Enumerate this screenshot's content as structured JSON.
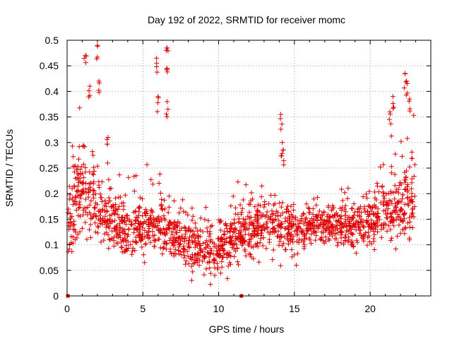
{
  "chart_data": {
    "type": "scatter",
    "title": "Day 192 of 2022, SRMTID for receiver momc",
    "xlabel": "GPS time / hours",
    "ylabel": "SRMTID / TECUs",
    "xlim": [
      0,
      24
    ],
    "ylim": [
      0,
      0.5
    ],
    "xticks": [
      "0",
      "5",
      "10",
      "15",
      "20"
    ],
    "yticks": [
      "0",
      "0.05",
      "0.1",
      "0.15",
      "0.2",
      "0.25",
      "0.3",
      "0.35",
      "0.4",
      "0.45",
      "0.5"
    ],
    "grid": true,
    "marker": "plus",
    "series_color": "#dd0000",
    "zero_markers_x": [
      0.05,
      11.5
    ],
    "profile": {
      "x": [
        0,
        0.5,
        1.0,
        1.5,
        2.0,
        2.5,
        3.0,
        3.5,
        4.0,
        4.5,
        5.0,
        5.5,
        6.0,
        6.5,
        7.0,
        7.5,
        8.0,
        8.5,
        9.0,
        9.5,
        10.0,
        10.5,
        11.0,
        11.5,
        12.0,
        12.5,
        13.0,
        13.5,
        14.0,
        14.5,
        15.0,
        15.5,
        16.0,
        16.5,
        17.0,
        17.5,
        18.0,
        18.5,
        19.0,
        19.5,
        20.0,
        20.5,
        21.0,
        21.5,
        22.0,
        22.5,
        23.0
      ],
      "median": [
        0.14,
        0.18,
        0.22,
        0.2,
        0.18,
        0.16,
        0.15,
        0.14,
        0.13,
        0.13,
        0.13,
        0.14,
        0.15,
        0.14,
        0.12,
        0.11,
        0.1,
        0.1,
        0.09,
        0.09,
        0.09,
        0.1,
        0.11,
        0.12,
        0.13,
        0.13,
        0.14,
        0.14,
        0.14,
        0.14,
        0.13,
        0.13,
        0.13,
        0.14,
        0.14,
        0.14,
        0.14,
        0.14,
        0.13,
        0.14,
        0.15,
        0.16,
        0.16,
        0.17,
        0.17,
        0.18,
        0.2
      ],
      "spread": [
        0.05,
        0.08,
        0.09,
        0.08,
        0.07,
        0.05,
        0.05,
        0.05,
        0.05,
        0.05,
        0.05,
        0.05,
        0.06,
        0.06,
        0.05,
        0.05,
        0.05,
        0.04,
        0.04,
        0.04,
        0.04,
        0.05,
        0.05,
        0.05,
        0.05,
        0.05,
        0.05,
        0.05,
        0.05,
        0.05,
        0.05,
        0.04,
        0.04,
        0.04,
        0.04,
        0.04,
        0.04,
        0.04,
        0.04,
        0.04,
        0.05,
        0.05,
        0.06,
        0.06,
        0.06,
        0.07,
        0.08
      ]
    },
    "peaks": [
      {
        "x": 1.2,
        "y": 0.47
      },
      {
        "x": 1.5,
        "y": 0.41
      },
      {
        "x": 2.0,
        "y": 0.49
      },
      {
        "x": 2.1,
        "y": 0.42
      },
      {
        "x": 2.7,
        "y": 0.31
      },
      {
        "x": 5.9,
        "y": 0.465
      },
      {
        "x": 6.0,
        "y": 0.39
      },
      {
        "x": 6.6,
        "y": 0.485
      },
      {
        "x": 6.6,
        "y": 0.445
      },
      {
        "x": 6.6,
        "y": 0.38
      },
      {
        "x": 14.1,
        "y": 0.355
      },
      {
        "x": 14.2,
        "y": 0.3
      },
      {
        "x": 14.25,
        "y": 0.285
      },
      {
        "x": 22.3,
        "y": 0.435
      },
      {
        "x": 22.4,
        "y": 0.42
      },
      {
        "x": 22.6,
        "y": 0.385
      },
      {
        "x": 21.5,
        "y": 0.39
      },
      {
        "x": 21.3,
        "y": 0.36
      }
    ]
  }
}
